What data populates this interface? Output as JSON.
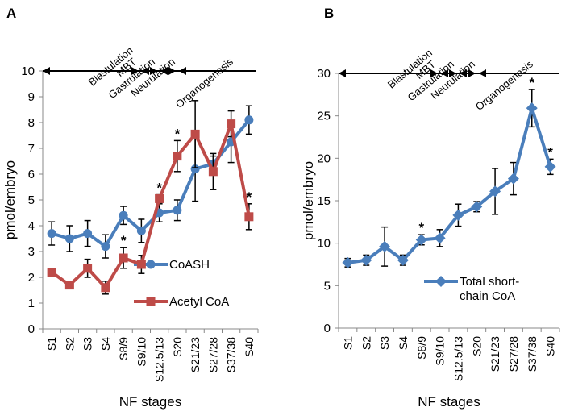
{
  "chart_data": [
    {
      "panel_label": "A",
      "type": "line",
      "xlabel": "NF stages",
      "ylabel": "pmol/embryo",
      "ylim": [
        0,
        10
      ],
      "yticks": [
        "0",
        "1",
        "2",
        "3",
        "4",
        "5",
        "6",
        "7",
        "8",
        "9",
        "10"
      ],
      "categories": [
        "S1",
        "S2",
        "S3",
        "S4",
        "S8/9",
        "S9/10",
        "S12.5/13",
        "S20",
        "S21/23",
        "S27/28",
        "S37/38",
        "S40"
      ],
      "stages": [
        "Blastulation",
        "MBT",
        "Gastrulation",
        "Neurulation",
        "Organogenesis"
      ],
      "legend_placement": "bottom-right",
      "series": [
        {
          "name": "CoASH",
          "color": "#4a7ebb",
          "marker": "circle",
          "values": [
            3.7,
            3.5,
            3.7,
            3.2,
            4.4,
            3.8,
            4.5,
            4.6,
            6.2,
            6.4,
            7.25,
            8.1
          ],
          "errors": [
            0.45,
            0.5,
            0.5,
            0.45,
            0.35,
            0.45,
            0.35,
            0.4,
            1.25,
            0.3,
            0.8,
            0.55
          ],
          "significant": []
        },
        {
          "name": "Acetyl CoA",
          "color": "#be4b48",
          "marker": "square",
          "values": [
            2.2,
            1.7,
            2.35,
            1.6,
            2.75,
            2.5,
            5.05,
            6.7,
            7.55,
            6.1,
            7.95,
            4.35
          ],
          "errors": [
            0.1,
            0.05,
            0.35,
            0.25,
            0.4,
            0.35,
            0.15,
            0.6,
            1.3,
            0.7,
            0.5,
            0.5
          ],
          "significant": [
            "S8/9",
            "S12.5/13",
            "S20",
            "S40"
          ]
        }
      ]
    },
    {
      "panel_label": "B",
      "type": "line",
      "xlabel": "NF stages",
      "ylabel": "pmol/embryo",
      "ylim": [
        0,
        30
      ],
      "yticks": [
        "0",
        "5",
        "10",
        "15",
        "20",
        "25",
        "30"
      ],
      "categories": [
        "S1",
        "S2",
        "S3",
        "S4",
        "S8/9",
        "S9/10",
        "S12.5/13",
        "S20",
        "S21/23",
        "S27/28",
        "S37/38",
        "S40"
      ],
      "stages": [
        "Blastulation",
        "MBT",
        "Gastrulation",
        "Neurulation",
        "Organogenesis"
      ],
      "legend_placement": "bottom-right",
      "series": [
        {
          "name": "Total short-chain CoA",
          "name_lines": [
            "Total short-",
            "chain CoA"
          ],
          "color": "#4a7ebb",
          "marker": "diamond",
          "values": [
            7.7,
            8.0,
            9.6,
            8.0,
            10.4,
            10.6,
            13.3,
            14.3,
            16.1,
            17.6,
            25.9,
            19.0
          ],
          "errors": [
            0.5,
            0.6,
            2.3,
            0.6,
            0.6,
            1.0,
            1.3,
            0.6,
            2.7,
            1.9,
            2.2,
            0.9
          ],
          "significant": [
            "S8/9",
            "S37/38",
            "S40"
          ]
        }
      ]
    }
  ]
}
